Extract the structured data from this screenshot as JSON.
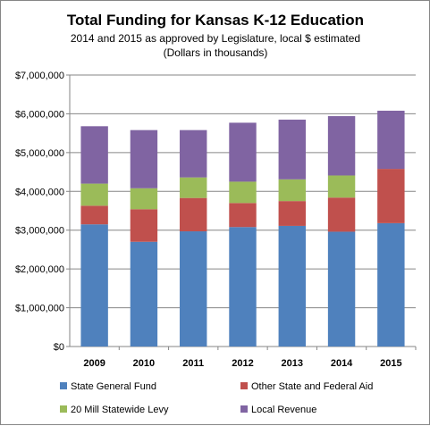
{
  "chart_data": {
    "type": "bar",
    "stacked": true,
    "title": "Total Funding for Kansas K-12 Education",
    "subtitle_lines": [
      "2014 and 2015 as approved by Legislature, local $ estimated",
      "(Dollars in thousands)"
    ],
    "categories": [
      "2009",
      "2010",
      "2011",
      "2012",
      "2013",
      "2014",
      "2015"
    ],
    "series": [
      {
        "name": "State General Fund",
        "color": "#4F81BD",
        "values": [
          3150000,
          2700000,
          2970000,
          3080000,
          3110000,
          2960000,
          3180000
        ]
      },
      {
        "name": "Other State and Federal Aid",
        "color": "#C0504D",
        "values": [
          480000,
          840000,
          860000,
          620000,
          640000,
          880000,
          1400000
        ]
      },
      {
        "name": "20 Mill Statewide Levy",
        "color": "#9BBB59",
        "values": [
          570000,
          540000,
          530000,
          550000,
          560000,
          570000,
          0
        ]
      },
      {
        "name": "Local Revenue",
        "color": "#8064A2",
        "values": [
          1480000,
          1500000,
          1220000,
          1520000,
          1540000,
          1530000,
          1500000
        ]
      }
    ],
    "y_ticks": [
      "$0",
      "$1,000,000",
      "$2,000,000",
      "$3,000,000",
      "$4,000,000",
      "$5,000,000",
      "$6,000,000",
      "$7,000,000"
    ],
    "ylim": [
      0,
      7000000
    ],
    "grid": true,
    "legend_position": "bottom"
  }
}
